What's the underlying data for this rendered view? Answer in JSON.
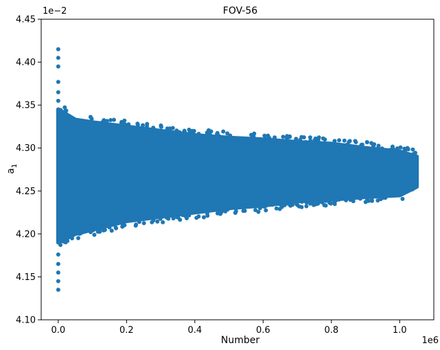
{
  "chart_data": {
    "type": "scatter",
    "title": "FOV-56",
    "xlabel": "Number",
    "ylabel_base": "a",
    "ylabel_sub": "1",
    "x_offset_label": "1e6",
    "y_offset_label": "1e−2",
    "xlim": [
      -50000,
      1100000
    ],
    "ylim": [
      4.1,
      4.45
    ],
    "x_units_scale": 1000000,
    "y_units_scale": 0.01,
    "xticks": [
      {
        "value": 0.0,
        "label": "0.0"
      },
      {
        "value": 0.2,
        "label": "0.2"
      },
      {
        "value": 0.4,
        "label": "0.4"
      },
      {
        "value": 0.6,
        "label": "0.6"
      },
      {
        "value": 0.8,
        "label": "0.8"
      },
      {
        "value": 1.0,
        "label": "1.0"
      }
    ],
    "yticks": [
      {
        "value": 4.1,
        "label": "4.10"
      },
      {
        "value": 4.15,
        "label": "4.15"
      },
      {
        "value": 4.2,
        "label": "4.20"
      },
      {
        "value": 4.25,
        "label": "4.25"
      },
      {
        "value": 4.3,
        "label": "4.30"
      },
      {
        "value": 4.35,
        "label": "4.35"
      },
      {
        "value": 4.4,
        "label": "4.40"
      },
      {
        "value": 4.45,
        "label": "4.45"
      }
    ],
    "grid": false,
    "legend": "none",
    "series": [
      {
        "color": "#1f77b4",
        "envelope": {
          "x": [
            0,
            50000,
            100000,
            200000,
            300000,
            400000,
            500000,
            600000,
            700000,
            800000,
            900000,
            1000000,
            1050000
          ],
          "y_upper": [
            4.345,
            4.333,
            4.33,
            4.325,
            4.32,
            4.315,
            4.312,
            4.31,
            4.307,
            4.305,
            4.3,
            4.296,
            4.29
          ],
          "y_lower": [
            4.19,
            4.2,
            4.205,
            4.215,
            4.22,
            4.225,
            4.23,
            4.233,
            4.238,
            4.24,
            4.243,
            4.245,
            4.255
          ]
        },
        "outliers": [
          {
            "x": 0,
            "y": 4.415
          },
          {
            "x": 0,
            "y": 4.405
          },
          {
            "x": 0,
            "y": 4.395
          },
          {
            "x": 0,
            "y": 4.377
          },
          {
            "x": 0,
            "y": 4.365
          },
          {
            "x": 0,
            "y": 4.355
          },
          {
            "x": 0,
            "y": 4.176
          },
          {
            "x": 0,
            "y": 4.165
          },
          {
            "x": 0,
            "y": 4.155
          },
          {
            "x": 0,
            "y": 4.145
          },
          {
            "x": 0,
            "y": 4.135
          }
        ]
      }
    ]
  }
}
